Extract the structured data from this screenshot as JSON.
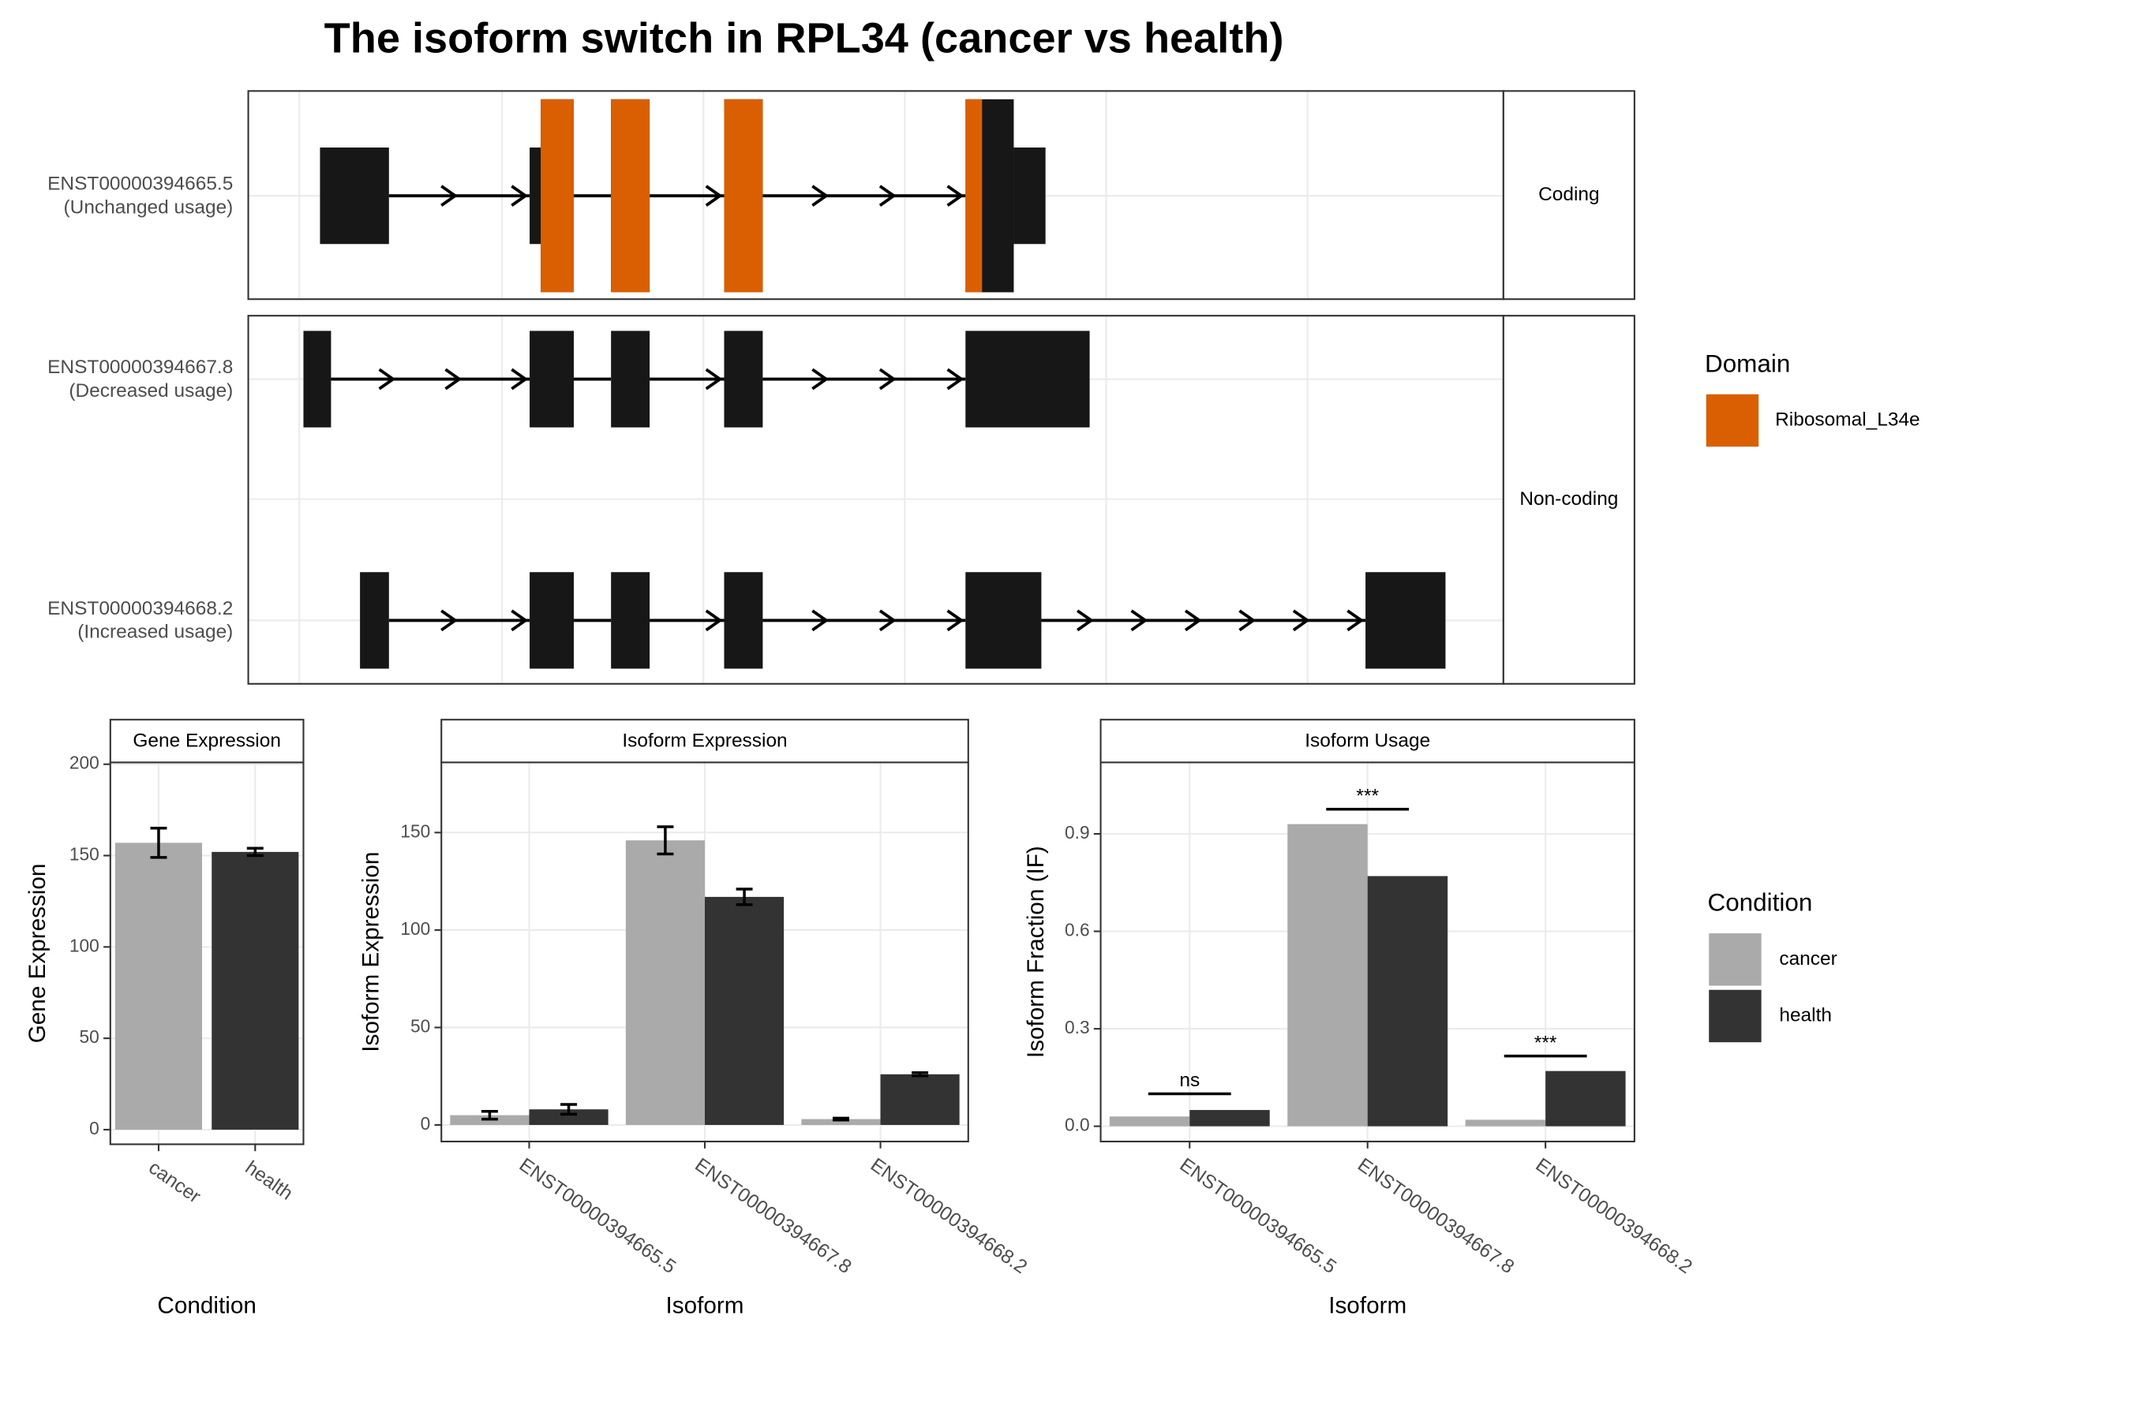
{
  "chart_data": [
    {
      "type": "transcripts",
      "title": "The isoform switch in RPL34 (cancer vs health)",
      "xlim": [
        0,
        910
      ],
      "groups": [
        "Coding",
        "Non-coding"
      ],
      "domain_title": "Domain",
      "domain": {
        "name": "Ribosomal_L34e",
        "color": "#d95f02",
        "segments": [
          [
            212,
            236
          ],
          [
            263,
            291
          ],
          [
            345,
            373
          ],
          [
            520,
            532
          ]
        ]
      },
      "transcripts": [
        {
          "name": "ENST00000394665.5",
          "note": "(Unchanged usage)",
          "group": 0,
          "exons": [
            [
              52,
              102
            ],
            [
              204,
              212
            ],
            [
              212,
              236
            ],
            [
              263,
              291
            ],
            [
              345,
              373
            ],
            [
              520,
              555
            ],
            [
              555,
              578
            ]
          ],
          "coding": [
            false,
            false,
            true,
            true,
            true,
            true,
            false
          ]
        },
        {
          "name": "ENST00000394667.8",
          "note": "(Decreased usage)",
          "group": 1,
          "exons": [
            [
              40,
              60
            ],
            [
              204,
              236
            ],
            [
              263,
              291
            ],
            [
              345,
              373
            ],
            [
              520,
              610
            ]
          ],
          "coding": [
            false,
            false,
            false,
            false,
            false
          ]
        },
        {
          "name": "ENST00000394668.2",
          "note": "(Increased usage)",
          "group": 1,
          "exons": [
            [
              81,
              102
            ],
            [
              204,
              236
            ],
            [
              263,
              291
            ],
            [
              345,
              373
            ],
            [
              520,
              575
            ],
            [
              810,
              868
            ]
          ],
          "coding": [
            false,
            false,
            false,
            false,
            false,
            false
          ]
        }
      ]
    },
    {
      "type": "bar",
      "strip": "Gene Expression",
      "x_label": "Condition",
      "y_label": "Gene Expression",
      "categories": [
        "cancer",
        "health"
      ],
      "values": [
        157,
        152
      ],
      "errors": [
        8,
        2
      ],
      "colors": [
        "#aaaaaa",
        "#333333"
      ],
      "ylim": [
        -8,
        201
      ],
      "yticks": [
        0,
        50,
        100,
        150,
        200
      ],
      "grid": true
    },
    {
      "type": "grouped_bar",
      "strip": "Isoform Expression",
      "x_label": "Isoform",
      "y_label": "Isoform Expression",
      "legend_title": "Condition",
      "categories": [
        "ENST00000394665.5",
        "ENST00000394667.8",
        "ENST00000394668.2"
      ],
      "series": [
        {
          "name": "cancer",
          "color": "#aaaaaa",
          "values": [
            5,
            146,
            3
          ],
          "errors": [
            2,
            7,
            0.5
          ]
        },
        {
          "name": "health",
          "color": "#333333",
          "values": [
            8,
            117,
            26
          ],
          "errors": [
            2.5,
            4,
            0.8
          ]
        }
      ],
      "ylim": [
        -8.5,
        186
      ],
      "yticks": [
        0,
        50,
        100,
        150
      ],
      "grid": true
    },
    {
      "type": "grouped_bar",
      "strip": "Isoform Usage",
      "x_label": "Isoform",
      "y_label": "Isoform Fraction (IF)",
      "categories": [
        "ENST00000394665.5",
        "ENST00000394667.8",
        "ENST00000394668.2"
      ],
      "series": [
        {
          "name": "cancer",
          "color": "#aaaaaa",
          "values": [
            0.03,
            0.93,
            0.02
          ]
        },
        {
          "name": "health",
          "color": "#333333",
          "values": [
            0.05,
            0.77,
            0.17
          ]
        }
      ],
      "significance": [
        {
          "label": "ns",
          "y": 0.1
        },
        {
          "label": "***",
          "y": 0.976
        },
        {
          "label": "***",
          "y": 0.216
        }
      ],
      "ylim": [
        -0.047,
        1.12
      ],
      "yticks": [
        {
          "value": 0,
          "label": "0.0"
        },
        0.3,
        0.6,
        0.9
      ],
      "grid": true
    }
  ]
}
